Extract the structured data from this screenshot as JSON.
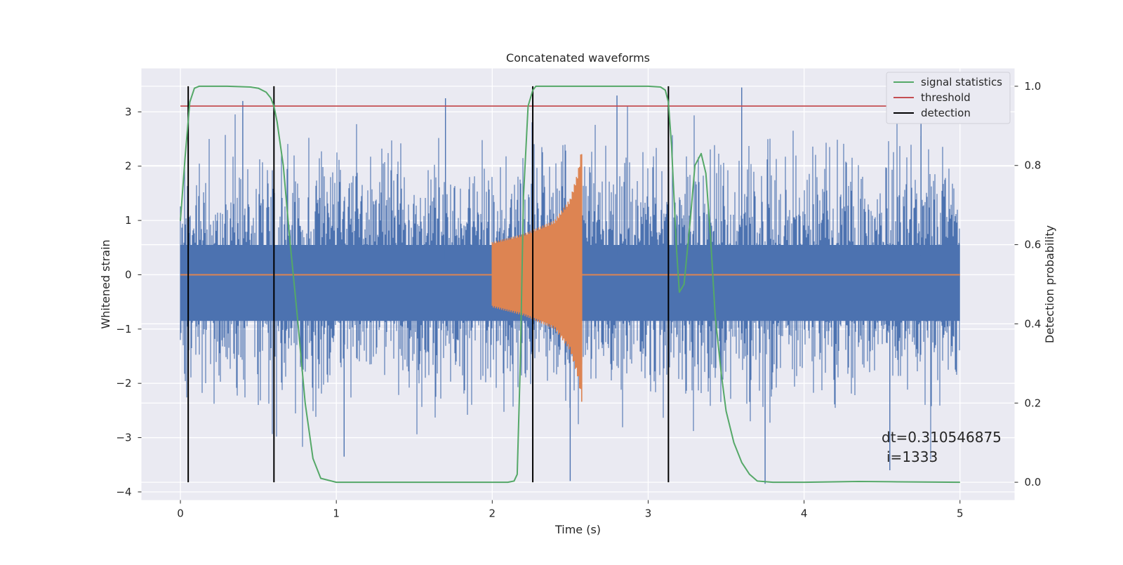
{
  "chart_data": {
    "type": "line",
    "title": "Concatenated waveforms",
    "xlabel": "Time (s)",
    "ylabel_left": "Whitened strain",
    "ylabel_right": "Detection probability",
    "xlim": [
      -0.25,
      5.35
    ],
    "ylim_left": [
      -4.15,
      3.8
    ],
    "ylim_right": [
      -0.045,
      1.045
    ],
    "grid": true,
    "legend_position": "top-right",
    "x_ticks": [
      "0",
      "1",
      "2",
      "3",
      "4",
      "5"
    ],
    "y_ticks_left": [
      "3",
      "2",
      "1",
      "0",
      "−1",
      "−2",
      "−3",
      "−4"
    ],
    "y_ticks_right": [
      "1.0",
      "0.8",
      "0.6",
      "0.4",
      "0.2",
      "0.0"
    ],
    "colors": {
      "noise": "#4c72b0",
      "waveform": "#dd8452",
      "signal_statistics": "#55a868",
      "threshold": "#c44e52",
      "detection": "#000000",
      "background": "#eaeaf2"
    },
    "series": [
      {
        "name": "",
        "axis": "left",
        "kind": "noise",
        "x_range": [
          0,
          5
        ],
        "envelope_core": [
          -0.85,
          0.55
        ],
        "y_min": -3.85,
        "y_max": 3.45
      },
      {
        "name": "",
        "axis": "left",
        "kind": "chirp",
        "x_range": [
          2.0,
          2.58
        ],
        "envelope": [
          [
            2.0,
            0.6
          ],
          [
            2.2,
            0.75
          ],
          [
            2.4,
            1.0
          ],
          [
            2.5,
            1.4
          ],
          [
            2.55,
            1.9
          ],
          [
            2.58,
            2.45
          ]
        ],
        "y_min": -2.4,
        "y_max": 2.45,
        "baseline": 0
      },
      {
        "name": "signal statistics",
        "axis": "right",
        "x": [
          0,
          0.03,
          0.06,
          0.09,
          0.12,
          0.2,
          0.3,
          0.45,
          0.5,
          0.55,
          0.58,
          0.6,
          0.62,
          0.66,
          0.7,
          0.75,
          0.8,
          0.85,
          0.9,
          1.0,
          1.5,
          2.0,
          2.1,
          2.14,
          2.16,
          2.18,
          2.2,
          2.23,
          2.26,
          2.28,
          2.3,
          2.4,
          2.6,
          3.0,
          3.08,
          3.11,
          3.13,
          3.15,
          3.18,
          3.2,
          3.23,
          3.27,
          3.3,
          3.34,
          3.37,
          3.4,
          3.43,
          3.47,
          3.5,
          3.55,
          3.6,
          3.65,
          3.7,
          3.8,
          4.0,
          4.35,
          4.6,
          5.0
        ],
        "y": [
          0.66,
          0.82,
          0.96,
          0.995,
          1.0,
          1.0,
          1.0,
          0.998,
          0.995,
          0.985,
          0.97,
          0.95,
          0.91,
          0.8,
          0.62,
          0.42,
          0.2,
          0.06,
          0.01,
          0.0,
          0.0,
          0.0,
          0.0,
          0.003,
          0.02,
          0.3,
          0.72,
          0.95,
          0.99,
          1.0,
          1.0,
          1.0,
          1.0,
          1.0,
          0.998,
          0.99,
          0.96,
          0.85,
          0.6,
          0.48,
          0.5,
          0.66,
          0.8,
          0.83,
          0.78,
          0.62,
          0.42,
          0.27,
          0.18,
          0.1,
          0.05,
          0.02,
          0.003,
          0.0,
          0.0,
          0.002,
          0.001,
          0.0
        ]
      },
      {
        "name": "threshold",
        "axis": "right",
        "x": [
          0,
          5.1
        ],
        "y": [
          0.95,
          0.95
        ]
      }
    ],
    "detections": {
      "name": "detection",
      "x": [
        0.05,
        0.6,
        2.26,
        3.13
      ],
      "ymin": 0.0,
      "ymax": 1.0
    },
    "legend": [
      "signal statistics",
      "threshold",
      "detection"
    ],
    "annotation": [
      "dt=0.310546875",
      "i=1333"
    ]
  }
}
